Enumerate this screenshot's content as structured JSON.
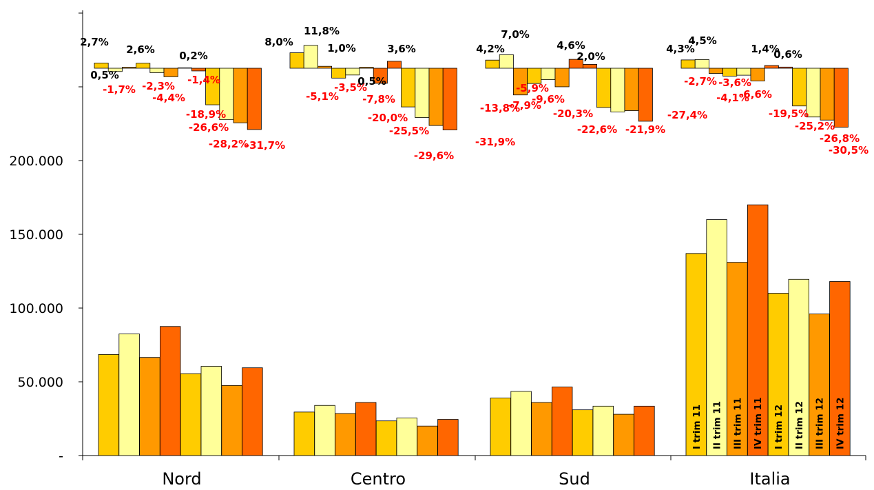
{
  "chart_data": {
    "type": "bar",
    "categories": [
      "Nord",
      "Centro",
      "Sud",
      "Italia"
    ],
    "series": [
      {
        "name": "I trim 11",
        "color": "#FFCC00",
        "values": [
          68500,
          29500,
          39000,
          137000
        ]
      },
      {
        "name": "II trim 11",
        "color": "#FFFF99",
        "values": [
          82500,
          34000,
          43500,
          160000
        ]
      },
      {
        "name": "III trim 11",
        "color": "#FF9900",
        "values": [
          66500,
          28500,
          36000,
          131000
        ]
      },
      {
        "name": "IV trim 11",
        "color": "#FF6600",
        "values": [
          87500,
          36000,
          46500,
          170000
        ]
      },
      {
        "name": "I trim 12",
        "color": "#FFCC00",
        "values": [
          55500,
          23500,
          31000,
          110000
        ]
      },
      {
        "name": "II trim 12",
        "color": "#FFFF99",
        "values": [
          60500,
          25500,
          33500,
          119500
        ]
      },
      {
        "name": "III trim 12",
        "color": "#FF9900",
        "values": [
          47500,
          20000,
          28000,
          96000
        ]
      },
      {
        "name": "IV trim 12",
        "color": "#FF6600",
        "values": [
          59500,
          24500,
          33500,
          118000
        ]
      }
    ],
    "ylim": [
      0,
      300000
    ],
    "yticks": [
      {
        "value": 0,
        "label": "-"
      },
      {
        "value": 50000,
        "label": "50.000"
      },
      {
        "value": 100000,
        "label": "100.000"
      },
      {
        "value": 150000,
        "label": "150.000"
      },
      {
        "value": 200000,
        "label": "200.000"
      }
    ],
    "pct_changes": {
      "values": [
        [
          2.7,
          -1.7,
          0.5,
          2.6,
          -2.3,
          -4.4,
          0.2,
          -1.4,
          -18.9,
          -26.6,
          -28.2,
          -31.7
        ],
        [
          8.0,
          11.8,
          1.0,
          -5.1,
          -3.5,
          0.5,
          -7.8,
          3.6,
          -20.0,
          -25.5,
          -29.6,
          -31.9
        ],
        [
          4.2,
          7.0,
          -13.8,
          -7.9,
          -5.9,
          -9.6,
          4.6,
          2.0,
          -20.3,
          -22.6,
          -21.9,
          -27.4
        ],
        [
          4.3,
          4.5,
          -2.7,
          -4.1,
          -3.6,
          -6.6,
          1.4,
          0.6,
          -19.5,
          -25.2,
          -26.8,
          -30.5
        ]
      ],
      "labels": [
        [
          "2,7%",
          "-1,7%",
          "0,5%",
          "2,6%",
          "-2,3%",
          "-4,4%",
          "0,2%",
          "-1,4%",
          "-18,9%",
          "-26,6%",
          "-28,2%",
          "-31,7%"
        ],
        [
          "8,0%",
          "11,8%",
          "1,0%",
          "-5,1%",
          "-3,5%",
          "0,5%",
          "-7,8%",
          "3,6%",
          "-20,0%",
          "-25,5%",
          "-29,6%",
          "-31,9%"
        ],
        [
          "4,2%",
          "7,0%",
          "-13,8%",
          "-7,9%",
          "-5,9%",
          "-9,6%",
          "4,6%",
          "2,0%",
          "-20,3%",
          "-22,6%",
          "-21,9%",
          "-27,4%"
        ],
        [
          "4,3%",
          "4,5%",
          "-2,7%",
          "-4,1%",
          "-3,6%",
          "-6,6%",
          "1,4%",
          "0,6%",
          "-19,5%",
          "-25,2%",
          "-26,8%",
          "-30,5%"
        ]
      ],
      "colors": [
        "#FFCC00",
        "#FFFF99",
        "#FF9900",
        "#FFCC00",
        "#FFFF99",
        "#FF9900",
        "#FF6600",
        "#FF6600",
        "#FFCC00",
        "#FFFF99",
        "#FF9900",
        "#FF6600"
      ]
    },
    "in_bar_labels_category": "Italia",
    "legend": "none",
    "grid": false,
    "title": "",
    "xlabel": "",
    "ylabel": ""
  }
}
